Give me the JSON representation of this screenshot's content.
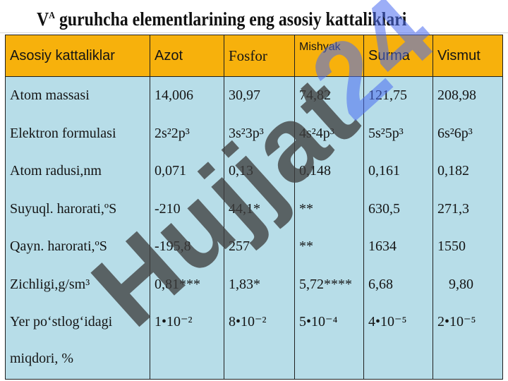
{
  "title": {
    "main": "guruhcha elementlarining eng asosiy kattaliklari",
    "prefix": "V",
    "prefix_sup": "A"
  },
  "table": {
    "headers": [
      "Asosiy kattaliklar",
      "Azot",
      "Fosfor",
      "Mishyak",
      "Surma",
      "Vismut"
    ],
    "rows": [
      {
        "label": "Atom massasi",
        "values": [
          "14,006",
          "30,97",
          "74,82",
          "121,75",
          "208,98"
        ]
      },
      {
        "label": "Elektron formulasi",
        "values": [
          "2s²2p³",
          "3s²3p³",
          "4s²4p³",
          "5s²5p³",
          "6s²6p³"
        ]
      },
      {
        "label": "Atom radusi,nm",
        "values": [
          "0,071",
          "0,13",
          "0,148",
          "0,161",
          "0,182"
        ]
      },
      {
        "label": "Suyuql. harorati,ºS",
        "values": [
          "-210",
          "44,1*",
          "**",
          "630,5",
          "271,3"
        ]
      },
      {
        "label": "Qayn. harorati,ºS",
        "values": [
          "-195,8",
          "257",
          "**",
          "1634",
          "1550"
        ]
      },
      {
        "label": "Zichligi,g/sm³",
        "values": [
          "0,81***",
          "1,83*",
          "5,72****",
          "6,68",
          "9,80"
        ]
      },
      {
        "label": "Yer po‘stlog‘idagi miqdori,  %",
        "values": [
          "1•10⁻²",
          "8•10⁻²",
          "5•10⁻⁴",
          "4•10⁻⁵",
          "2•10⁻⁵"
        ]
      }
    ]
  },
  "watermark": {
    "text": "Hujjat24",
    "color": "#3f3f3f",
    "accent_color": "#4a6cf0"
  },
  "colors": {
    "header_bg": "#f7b10c",
    "body_bg": "#b7dde8"
  }
}
